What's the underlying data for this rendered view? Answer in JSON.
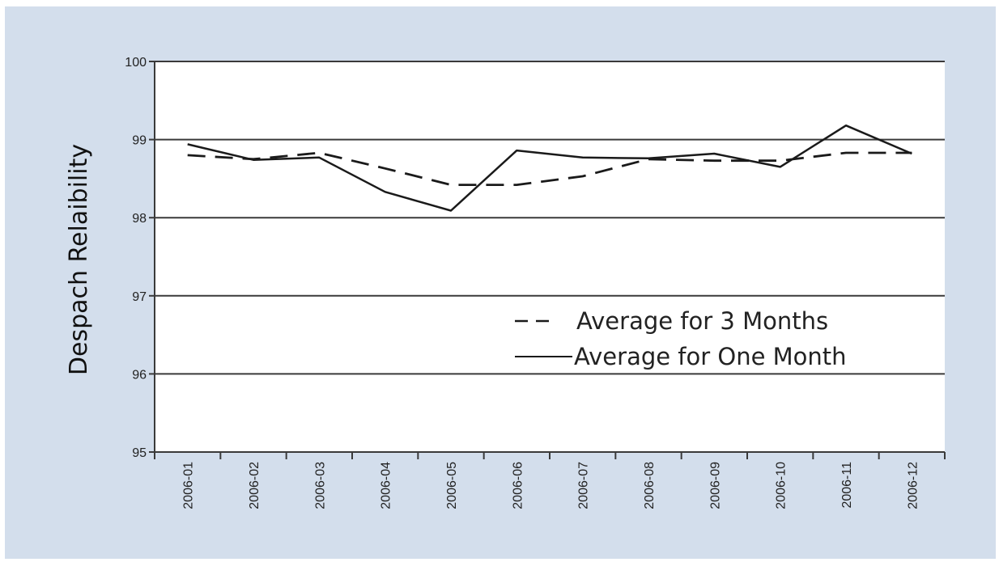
{
  "chart_data": {
    "type": "line",
    "title": "",
    "xlabel": "",
    "ylabel": "Despach Relaibility",
    "ylim": [
      95,
      100
    ],
    "yticks": [
      95,
      96,
      97,
      98,
      99,
      100
    ],
    "grid": "horizontal",
    "legend_position": "center-right",
    "categories": [
      "2006-01",
      "2006-02",
      "2006-03",
      "2006-04",
      "2006-05",
      "2006-06",
      "2006-07",
      "2006-08",
      "2006-09",
      "2006-10",
      "2006-11",
      "2006-12"
    ],
    "series": [
      {
        "name": "Average for 3 Months",
        "style": "dashed",
        "color": "#1a1a1a",
        "values": [
          98.8,
          98.75,
          98.83,
          98.63,
          98.42,
          98.42,
          98.53,
          98.75,
          98.73,
          98.73,
          98.83,
          98.83
        ]
      },
      {
        "name": "Average for One Month",
        "style": "solid",
        "color": "#1a1a1a",
        "values": [
          98.94,
          98.74,
          98.77,
          98.33,
          98.09,
          98.86,
          98.77,
          98.76,
          98.82,
          98.65,
          99.18,
          98.82
        ]
      }
    ]
  },
  "colors": {
    "background": "#d3deec",
    "plot_area": "#ffffff",
    "lines": "#1a1a1a",
    "grid": "#3a3a3a"
  }
}
